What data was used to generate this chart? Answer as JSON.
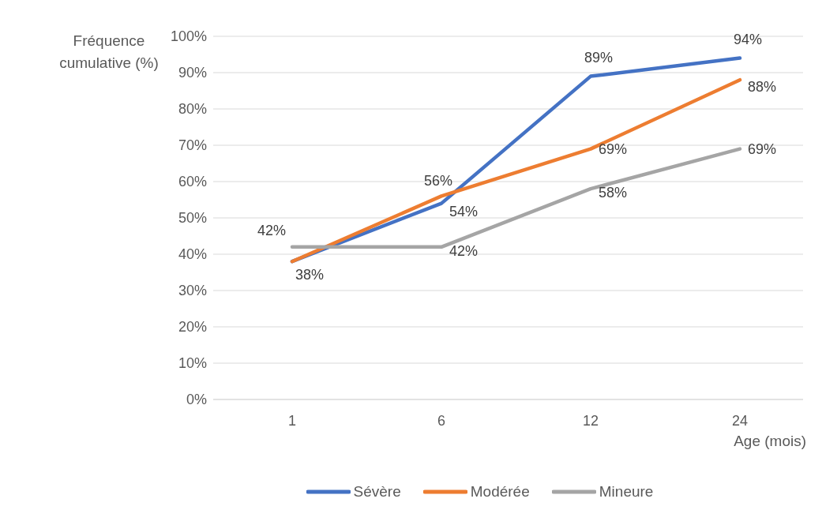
{
  "chart_data": {
    "type": "line",
    "ylabel": "Fréquence cumulative (%)",
    "xlabel": "Age (mois)",
    "categories": [
      "1",
      "6",
      "12",
      "24"
    ],
    "series": [
      {
        "name": "Sévère",
        "color": "#4472c4",
        "values": [
          38,
          54,
          89,
          94
        ],
        "value_labels": [
          "38%",
          "54%",
          "89%",
          "94%"
        ]
      },
      {
        "name": "Modérée",
        "color": "#ed7d31",
        "values": [
          38,
          56,
          69,
          88
        ],
        "value_labels": [
          null,
          "56%",
          "69%",
          "88%"
        ]
      },
      {
        "name": "Mineure",
        "color": "#a5a5a5",
        "values": [
          42,
          42,
          58,
          69
        ],
        "value_labels": [
          "42%",
          "42%",
          "58%",
          "69%"
        ]
      }
    ],
    "ylim": [
      0,
      100
    ],
    "yticks": [
      {
        "value": 0,
        "label": "0%"
      },
      {
        "value": 10,
        "label": "10%"
      },
      {
        "value": 20,
        "label": "20%"
      },
      {
        "value": 30,
        "label": "30%"
      },
      {
        "value": 40,
        "label": "40%"
      },
      {
        "value": 50,
        "label": "50%"
      },
      {
        "value": 60,
        "label": "60%"
      },
      {
        "value": 70,
        "label": "70%"
      },
      {
        "value": 80,
        "label": "80%"
      },
      {
        "value": 90,
        "label": "90%"
      },
      {
        "value": 100,
        "label": "100%"
      }
    ],
    "grid": "y",
    "legend": "bottom",
    "marker": "none",
    "line_style": "solid"
  }
}
